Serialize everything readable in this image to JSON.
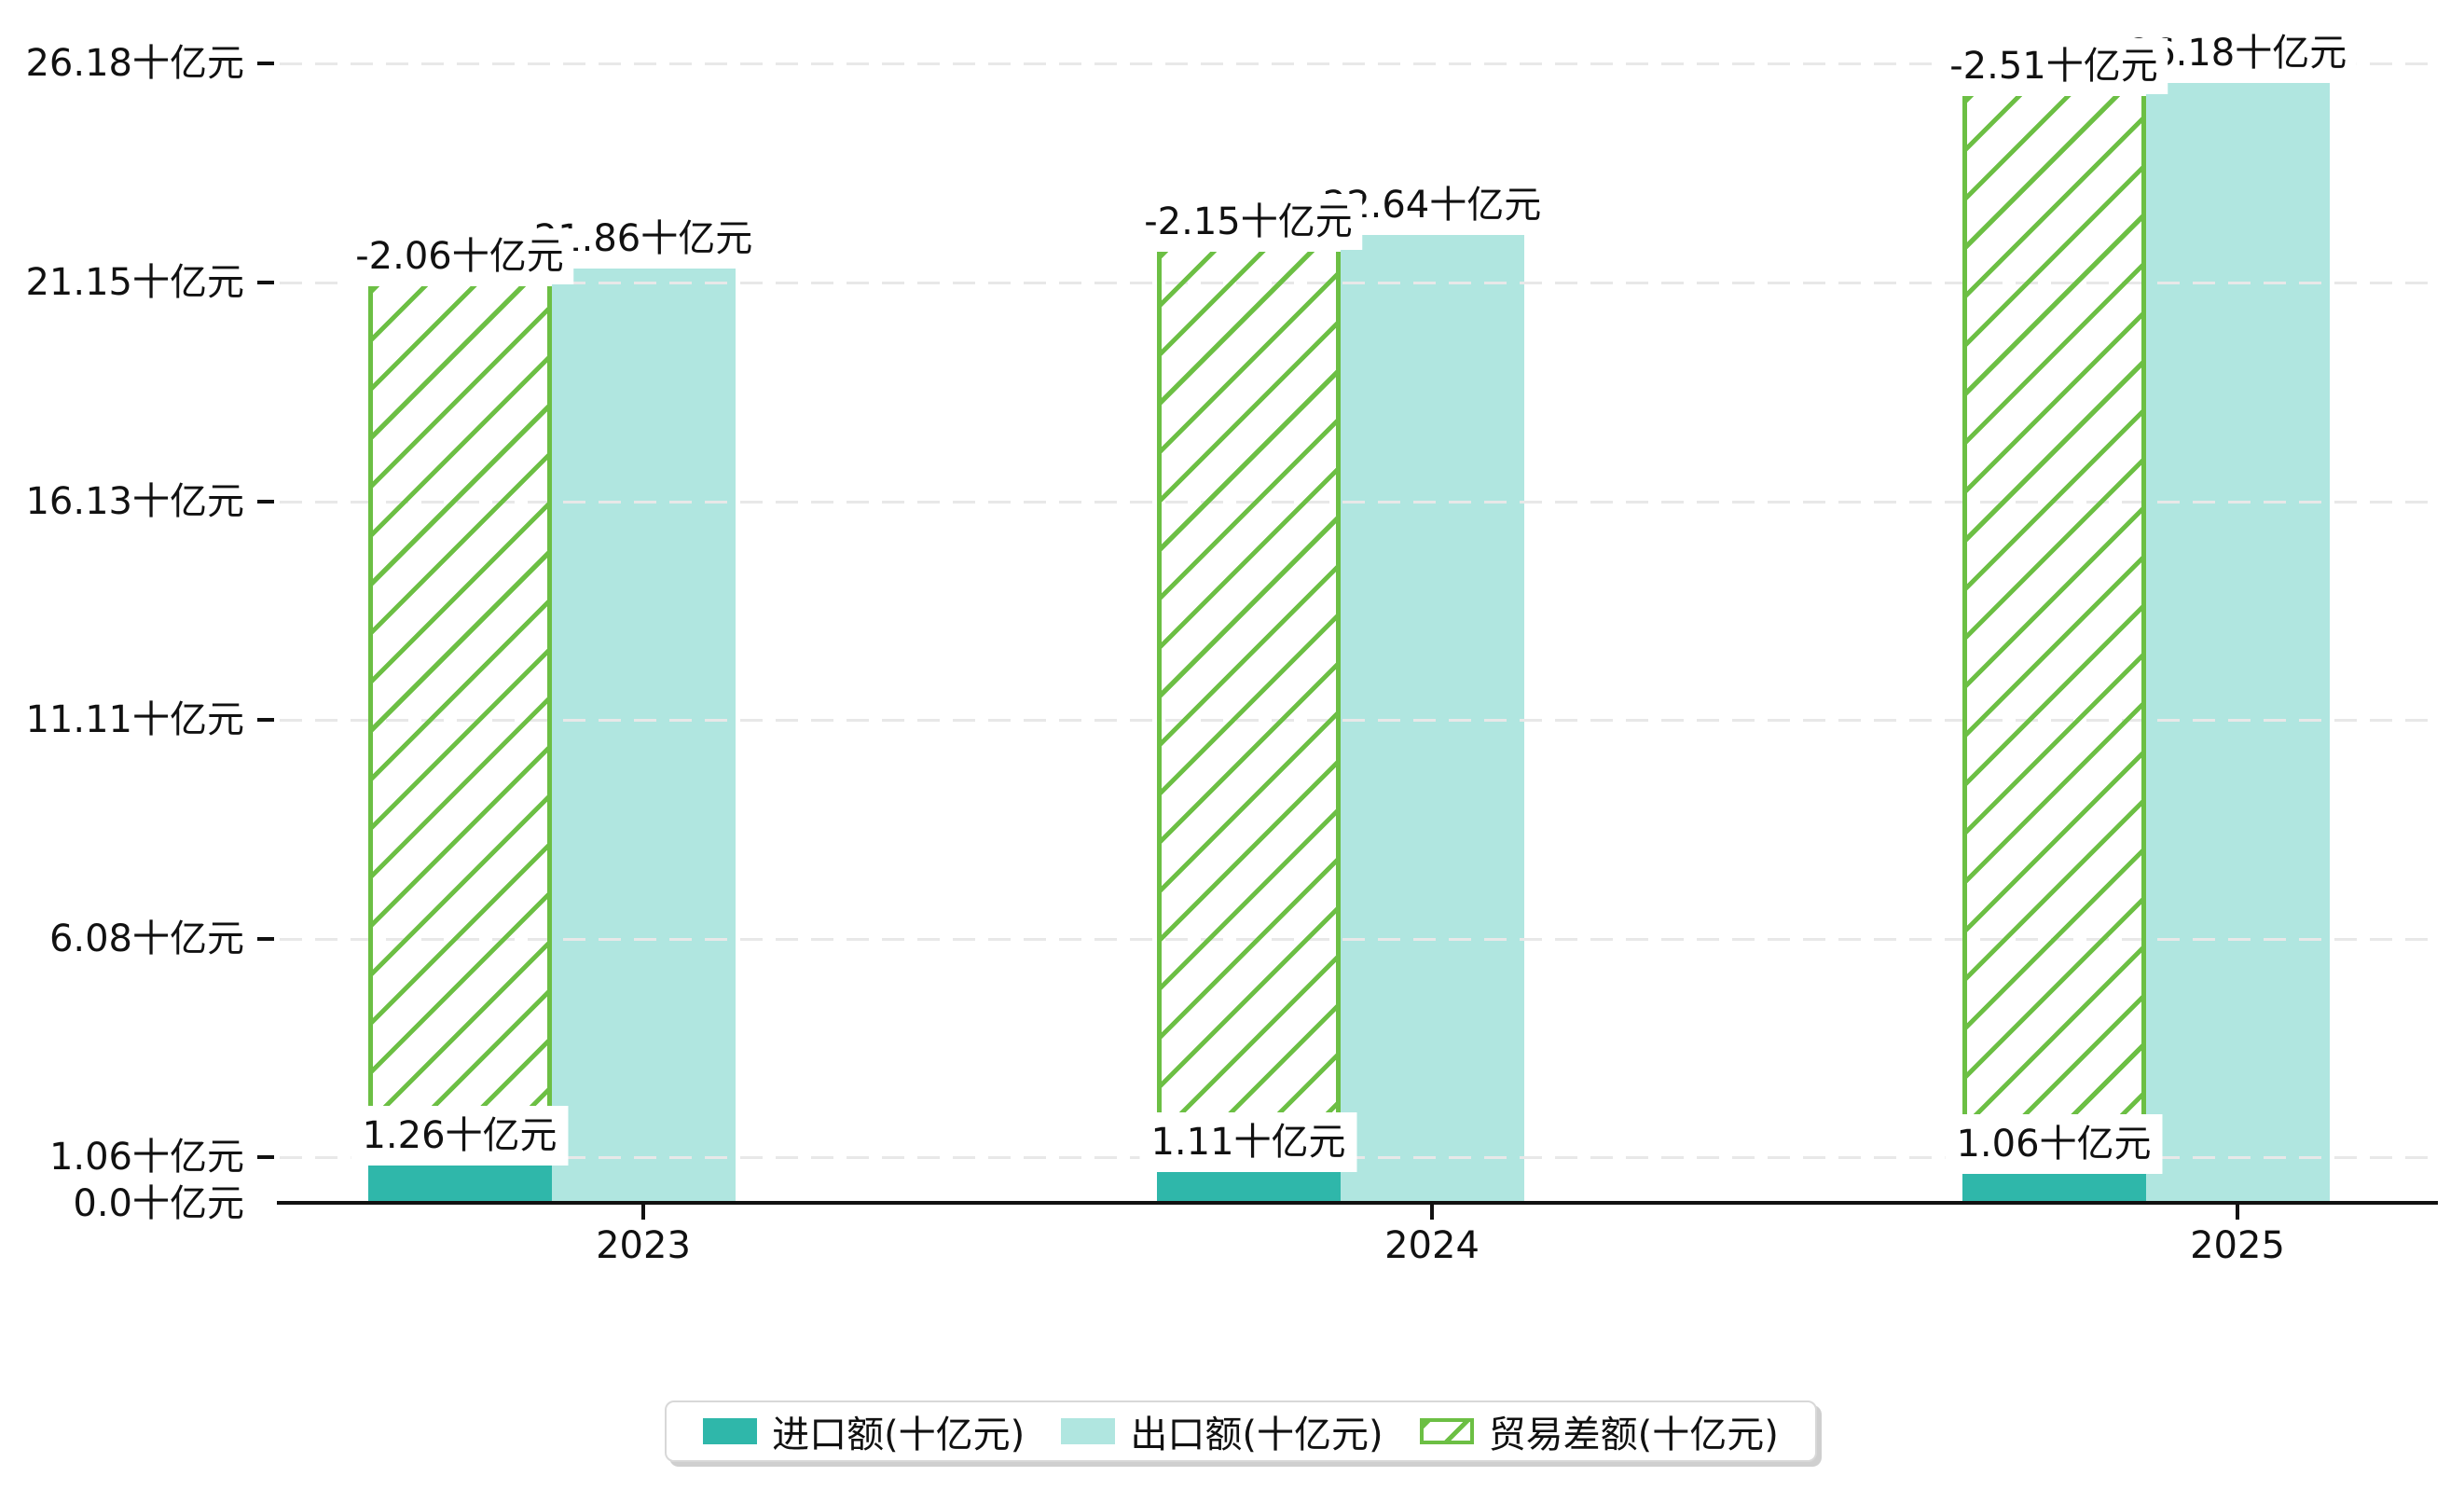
{
  "chart_data": {
    "type": "bar",
    "title": "",
    "categories": [
      "2023",
      "2024",
      "2025"
    ],
    "unit_suffix": "十亿元",
    "series": [
      {
        "name": "进口额(十亿元)",
        "key": "import",
        "style": "solid",
        "color": "#2fb7aa",
        "values": [
          1.26,
          1.11,
          1.06
        ],
        "bar_labels": [
          "1.26十亿元",
          "1.11十亿元",
          "1.06十亿元"
        ]
      },
      {
        "name": "出口额(十亿元)",
        "key": "export",
        "style": "solid",
        "color": "#b0e6e0",
        "values": [
          21.86,
          22.64,
          26.18
        ],
        "bar_labels": [
          "21.86十亿元",
          "22.64十亿元",
          "26.18十亿元"
        ],
        "visible_label_fragments": [
          ".86十亿元",
          ".64十亿元",
          ".18十亿元"
        ]
      },
      {
        "name": "贸易差额(十亿元)",
        "key": "trade-balance",
        "style": "hatched",
        "color": "#6cbf44",
        "values": [
          -2.06,
          -2.15,
          -2.51
        ],
        "bar_labels": [
          "-2.06十亿元",
          "-2.15十亿元",
          "-2.51十亿元"
        ],
        "drawn_bar_tops": [
          21.44,
          22.24,
          25.88
        ]
      }
    ],
    "y_axis": {
      "tick_values": [
        0.0,
        1.06,
        6.08,
        11.11,
        16.13,
        21.15,
        26.18
      ],
      "tick_labels": [
        "0.0十亿元",
        "1.06十亿元",
        "6.08十亿元",
        "11.11十亿元",
        "16.13十亿元",
        "21.15十亿元",
        "26.18十亿元"
      ],
      "range": [
        0,
        26.18
      ],
      "gridlines": "horizontal-dashed"
    },
    "x_axis": {
      "tick_labels": [
        "2023",
        "2024",
        "2025"
      ]
    },
    "legend": {
      "position": "bottom-center",
      "items": [
        {
          "label": "进口额(十亿元)",
          "swatch": "solid-teal"
        },
        {
          "label": "出口额(十亿元)",
          "swatch": "solid-light-cyan"
        },
        {
          "label": "贸易差额(十亿元)",
          "swatch": "green-hatched-outline"
        }
      ]
    }
  },
  "colors": {
    "import_bar": "#2fb7aa",
    "export_bar": "#b0e6e0",
    "trade_balance_hatch": "#6cbf44",
    "gridline": "#e8e8e8",
    "axis": "#111111",
    "text": "#111111",
    "background": "#ffffff",
    "legend_border": "#d8d8d8",
    "legend_shadow": "#cfcfcf"
  }
}
